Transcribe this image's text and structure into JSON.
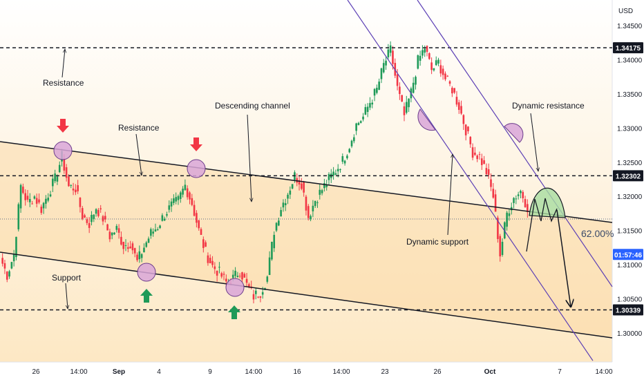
{
  "chart_data": {
    "type": "candlestick",
    "currency_label": "USD",
    "y_ticks": [
      "1.34500",
      "1.34000",
      "1.33500",
      "1.33000",
      "1.32500",
      "1.32000",
      "1.31500",
      "1.31000",
      "1.30500",
      "1.30000"
    ],
    "y_tick_values": [
      1.345,
      1.34,
      1.335,
      1.33,
      1.325,
      1.32,
      1.315,
      1.31,
      1.305,
      1.3
    ],
    "x_ticks": [
      "26",
      "14:00",
      "Sep",
      "4",
      "9",
      "14:00",
      "16",
      "14:00",
      "23",
      "26",
      "Oct",
      "7",
      "14:00"
    ],
    "price_levels": [
      {
        "label": "1.34175",
        "value": 1.34175,
        "style": "dashed"
      },
      {
        "label": "1.32302",
        "value": 1.32302,
        "style": "dashed"
      },
      {
        "label": "1.30339",
        "value": 1.30339,
        "style": "dashed"
      }
    ],
    "current_price": {
      "label": "01:57:46",
      "value": 1.3115
    },
    "fib_level": {
      "label": "62.00%",
      "value": 1.3166
    },
    "annotations": [
      "Resistance",
      "Resistance",
      "Descending channel",
      "Support",
      "Dynamic support",
      "Dynamic resistance"
    ],
    "price_path_closes": [
      1.311,
      1.3085,
      1.3115,
      1.3215,
      1.319,
      1.32,
      1.3182,
      1.3204,
      1.3225,
      1.3258,
      1.3214,
      1.3212,
      1.3172,
      1.316,
      1.3184,
      1.3168,
      1.3142,
      1.3152,
      1.3128,
      1.3132,
      1.3104,
      1.3126,
      1.3146,
      1.3156,
      1.3174,
      1.3186,
      1.3194,
      1.3216,
      1.319,
      1.315,
      1.3118,
      1.3098,
      1.3088,
      1.3074,
      1.308,
      1.3092,
      1.307,
      1.3054,
      1.306,
      1.3082,
      1.315,
      1.3184,
      1.3205,
      1.323,
      1.322,
      1.317,
      1.3195,
      1.321,
      1.3225,
      1.3238,
      1.3252,
      1.3275,
      1.3305,
      1.3316,
      1.3338,
      1.3356,
      1.3392,
      1.3414,
      1.3358,
      1.3318,
      1.3352,
      1.3398,
      1.3418,
      1.3385,
      1.3396,
      1.3372,
      1.3357,
      1.3332,
      1.3298,
      1.3265,
      1.3258,
      1.3236,
      1.32,
      1.3115,
      1.3175,
      1.3198,
      1.3208,
      1.3185
    ]
  }
}
